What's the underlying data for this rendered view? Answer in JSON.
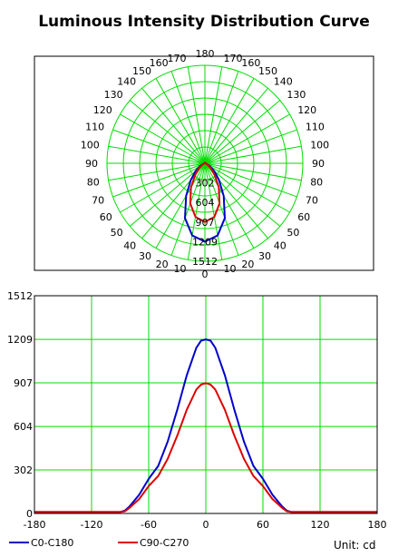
{
  "title": "Luminous Intensity Distribution Curve",
  "unit_label": "Unit: cd",
  "colors": {
    "grid": "#00dd00",
    "c0": "#0000cc",
    "c90": "#dd0000",
    "frame": "#000000"
  },
  "chart_data": [
    {
      "type": "polar",
      "angle_labels_left": [
        "0",
        "10",
        "20",
        "30",
        "40",
        "50",
        "60",
        "70",
        "80",
        "90",
        "100",
        "110",
        "120",
        "130",
        "140",
        "150",
        "160",
        "170",
        "180"
      ],
      "angle_labels_right": [
        "0",
        "10",
        "20",
        "30",
        "40",
        "50",
        "60",
        "70",
        "80",
        "90",
        "100",
        "110",
        "120",
        "130",
        "140",
        "150",
        "160",
        "170",
        "180"
      ],
      "radial_tick_labels": [
        "302",
        "604",
        "907",
        "1209",
        "1512"
      ],
      "rmax": 1512,
      "series": [
        {
          "name": "C0-C180",
          "angles": [
            0,
            10,
            20,
            30,
            40,
            50,
            60,
            70,
            80,
            90,
            100,
            120,
            150,
            180
          ],
          "values": [
            1209,
            1130,
            900,
            580,
            340,
            190,
            90,
            30,
            12,
            10,
            10,
            10,
            10,
            10
          ]
        },
        {
          "name": "C90-C270",
          "angles": [
            0,
            10,
            20,
            30,
            40,
            50,
            60,
            70,
            80,
            90,
            100,
            120,
            150,
            180
          ],
          "values": [
            905,
            840,
            660,
            430,
            230,
            120,
            50,
            18,
            10,
            10,
            10,
            10,
            10,
            10
          ]
        }
      ]
    },
    {
      "type": "line",
      "x_ticks": [
        "-180",
        "-120",
        "-60",
        "0",
        "60",
        "120",
        "180"
      ],
      "y_ticks": [
        "0",
        "302",
        "604",
        "907",
        "1209",
        "1512"
      ],
      "xlim": [
        -180,
        180
      ],
      "ylim": [
        0,
        1512
      ],
      "grid": true,
      "legend": "bottom-left",
      "series": [
        {
          "name": "C0-C180",
          "x": [
            -180,
            -150,
            -120,
            -90,
            -85,
            -80,
            -75,
            -70,
            -60,
            -50,
            -40,
            -30,
            -20,
            -10,
            -5,
            0,
            5,
            10,
            20,
            30,
            40,
            50,
            60,
            70,
            75,
            80,
            85,
            90,
            120,
            150,
            180
          ],
          "y": [
            10,
            10,
            10,
            10,
            20,
            50,
            90,
            130,
            240,
            330,
            500,
            720,
            960,
            1150,
            1200,
            1209,
            1200,
            1150,
            960,
            720,
            500,
            330,
            240,
            130,
            90,
            50,
            20,
            10,
            10,
            10,
            10
          ]
        },
        {
          "name": "C90-C270",
          "x": [
            -180,
            -150,
            -120,
            -90,
            -85,
            -80,
            -75,
            -70,
            -60,
            -50,
            -40,
            -30,
            -20,
            -10,
            -5,
            0,
            5,
            10,
            20,
            30,
            40,
            50,
            60,
            70,
            75,
            80,
            85,
            90,
            120,
            150,
            180
          ],
          "y": [
            10,
            10,
            10,
            10,
            15,
            40,
            70,
            100,
            190,
            260,
            380,
            540,
            720,
            860,
            895,
            905,
            895,
            860,
            720,
            540,
            380,
            260,
            190,
            100,
            70,
            40,
            15,
            10,
            10,
            10,
            10
          ]
        }
      ]
    }
  ]
}
